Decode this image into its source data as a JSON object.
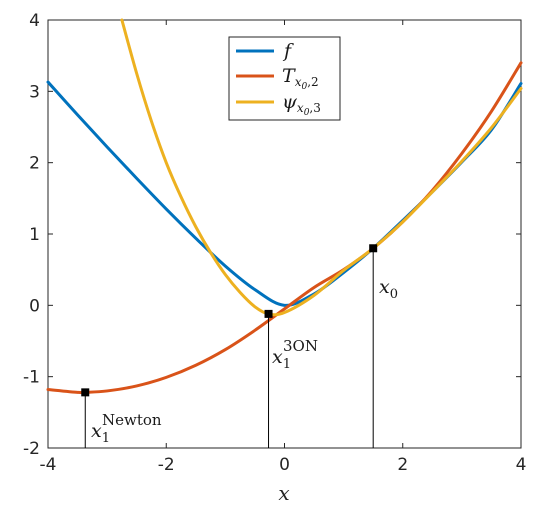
{
  "chart_data": {
    "type": "line",
    "xlabel": "x",
    "ylabel": "",
    "xlim": [
      -4,
      4
    ],
    "ylim": [
      -2,
      4
    ],
    "xticks": [
      "-4",
      "-2",
      "0",
      "2",
      "4"
    ],
    "yticks": [
      "-2",
      "-1",
      "0",
      "1",
      "2",
      "3",
      "4"
    ],
    "grid": false,
    "legend_position": "top-center",
    "series": [
      {
        "name": "f",
        "color": "#0072BD",
        "x": [
          -4,
          -3.5,
          -3,
          -2.5,
          -2,
          -1.5,
          -1,
          -0.5,
          0,
          0.5,
          1,
          1.5,
          2,
          2.5,
          3,
          3.5,
          4
        ],
        "y": [
          3.13,
          2.67,
          2.22,
          1.78,
          1.35,
          0.94,
          0.55,
          0.22,
          0,
          0.16,
          0.46,
          0.8,
          1.19,
          1.59,
          2.01,
          2.46,
          3.11
        ]
      },
      {
        "name": "T_{x0,2}",
        "color": "#D95319",
        "x": [
          -4,
          -3.5,
          -3.37,
          -3,
          -2.5,
          -2,
          -1.5,
          -1,
          -0.5,
          0,
          0.5,
          1,
          1.5,
          2,
          2.5,
          3,
          3.5,
          4
        ],
        "y": [
          -1.18,
          -1.22,
          -1.22,
          -1.2,
          -1.13,
          -1.01,
          -0.84,
          -0.62,
          -0.35,
          -0.05,
          0.25,
          0.5,
          0.8,
          1.17,
          1.61,
          2.13,
          2.72,
          3.4
        ]
      },
      {
        "name": "ψ_{x0,3}",
        "color": "#EDB120",
        "x": [
          -2.75,
          -2.5,
          -2.25,
          -2,
          -1.75,
          -1.5,
          -1.25,
          -1,
          -0.75,
          -0.5,
          -0.27,
          0,
          0.5,
          1,
          1.5,
          2,
          2.5,
          3,
          3.5,
          4
        ],
        "y": [
          4.0,
          3.25,
          2.58,
          2.0,
          1.52,
          1.1,
          0.74,
          0.43,
          0.18,
          -0.02,
          -0.12,
          -0.1,
          0.14,
          0.49,
          0.8,
          1.17,
          1.59,
          2.02,
          2.49,
          3.04
        ]
      }
    ],
    "markers": [
      {
        "label": "x0",
        "x": 1.5,
        "y": 0.8
      },
      {
        "label": "x1 3ON",
        "x": -0.27,
        "y": -0.12
      },
      {
        "label": "x1 Newton",
        "x": -3.37,
        "y": -1.22
      }
    ]
  },
  "labels": {
    "x0_base": "x",
    "x0_sub": "0",
    "x1_base": "x",
    "x1_sub": "1",
    "x1_3on_sup": "3ON",
    "x1_newton_sup": "Newton",
    "legend_f": "f",
    "legend_T_base": "T",
    "legend_T_sub_x": "x",
    "legend_T_sub_0": "0",
    "legend_T_sub_rest": ",2",
    "legend_psi_base": "ψ",
    "legend_psi_sub_x": "x",
    "legend_psi_sub_0": "0",
    "legend_psi_sub_rest": ",3"
  }
}
